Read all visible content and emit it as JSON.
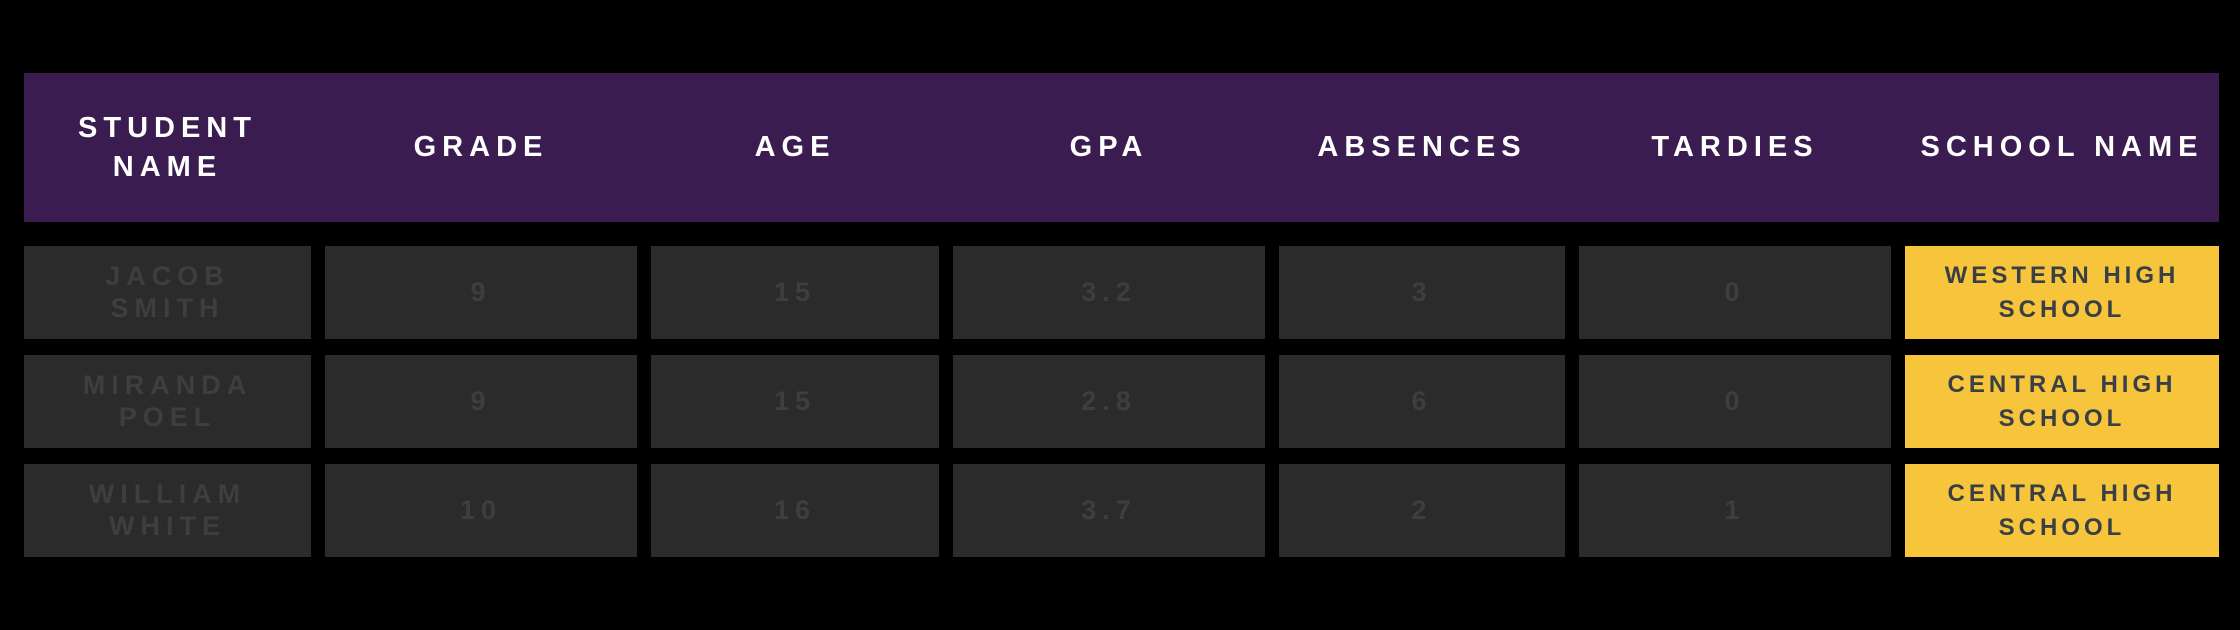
{
  "chart_data": {
    "type": "table",
    "columns": [
      "STUDENT NAME",
      "GRADE",
      "AGE",
      "GPA",
      "ABSENCES",
      "TARDIES",
      "SCHOOL NAME"
    ],
    "rows": [
      [
        "JACOB SMITH",
        "9",
        "15",
        "3.2",
        "3",
        "0",
        "WESTERN HIGH SCHOOL"
      ],
      [
        "MIRANDA POEL",
        "9",
        "15",
        "2.8",
        "6",
        "0",
        "CENTRAL HIGH SCHOOL"
      ],
      [
        "WILLIAM WHITE",
        "10",
        "16",
        "3.7",
        "2",
        "1",
        "CENTRAL HIGH SCHOOL"
      ]
    ],
    "layout": {
      "legend": "none",
      "grid": "off",
      "highlight_column": "SCHOOL NAME"
    },
    "colors": {
      "page_background": "#000000",
      "header_background": "#3A1C50",
      "header_text": "#FFFFFF",
      "cell_background": "#2B2B2B",
      "cell_text": "#3E3E3E",
      "highlight_background": "#F6C53C",
      "highlight_text": "#3A3F46"
    }
  }
}
